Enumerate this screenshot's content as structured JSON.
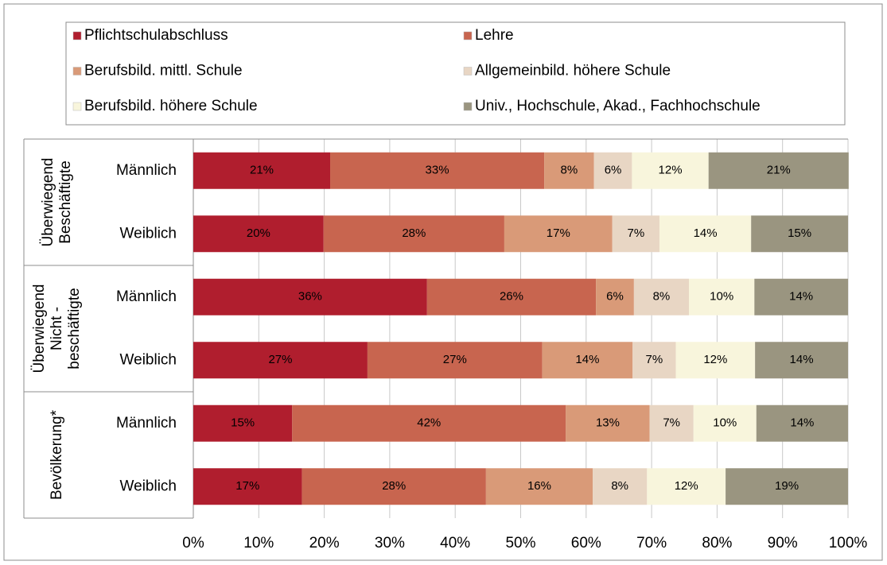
{
  "chart_data": {
    "type": "stacked_bar_horizontal",
    "groups": [
      [
        "Überwiegend",
        "Beschäftigte"
      ],
      [
        "Überwiegend",
        "Nicht -",
        "beschäftigte"
      ],
      [
        "Bevölkerung*"
      ]
    ],
    "categories": [
      "Männlich",
      "Weiblich",
      "Männlich",
      "Weiblich",
      "Männlich",
      "Weiblich"
    ],
    "series": [
      {
        "name": "Pflichtschulabschluss",
        "color": "#b01e2e",
        "values": [
          20.9,
          19.9,
          35.7,
          26.6,
          15.1,
          16.6
        ],
        "value_labels": [
          "21%",
          "20%",
          "36%",
          "27%",
          "15%",
          "17%"
        ]
      },
      {
        "name": "Lehre",
        "color": "#c8654f",
        "values": [
          32.7,
          27.6,
          25.8,
          26.7,
          41.8,
          28.1
        ],
        "value_labels": [
          "33%",
          "28%",
          "26%",
          "27%",
          "42%",
          "28%"
        ]
      },
      {
        "name": "Berufsbild. mittl. Schule",
        "color": "#d99a78",
        "values": [
          7.6,
          16.5,
          5.8,
          13.8,
          12.8,
          16.3
        ],
        "value_labels": [
          "8%",
          "17%",
          "6%",
          "14%",
          "13%",
          "16%"
        ]
      },
      {
        "name": "Allgemeinbild. höhere Schule",
        "color": "#e8d6c4",
        "values": [
          5.8,
          7.2,
          8.4,
          6.6,
          6.7,
          8.3
        ],
        "value_labels": [
          "6%",
          "7%",
          "8%",
          "7%",
          "7%",
          "8%"
        ]
      },
      {
        "name": "Berufsbild. höhere Schule",
        "color": "#f8f5dc",
        "values": [
          11.7,
          14.0,
          10.0,
          12.1,
          9.6,
          12.0
        ],
        "value_labels": [
          "12%",
          "14%",
          "10%",
          "12%",
          "10%",
          "12%"
        ]
      },
      {
        "name": "Univ., Hochschule, Akad., Fachhochschule",
        "color": "#9a9580",
        "values": [
          21.4,
          14.8,
          14.3,
          14.2,
          14.0,
          18.7
        ],
        "value_labels": [
          "21%",
          "15%",
          "14%",
          "14%",
          "14%",
          "19%"
        ]
      }
    ],
    "xlim": [
      0,
      100
    ],
    "xticks": [
      {
        "value": 0,
        "label": "0%"
      },
      {
        "value": 10,
        "label": "10%"
      },
      {
        "value": 20,
        "label": "20%"
      },
      {
        "value": 30,
        "label": "30%"
      },
      {
        "value": 40,
        "label": "40%"
      },
      {
        "value": 50,
        "label": "50%"
      },
      {
        "value": 60,
        "label": "60%"
      },
      {
        "value": 70,
        "label": "70%"
      },
      {
        "value": 80,
        "label": "80%"
      },
      {
        "value": 90,
        "label": "90%"
      },
      {
        "value": 100,
        "label": "100%"
      }
    ],
    "grid": true
  }
}
